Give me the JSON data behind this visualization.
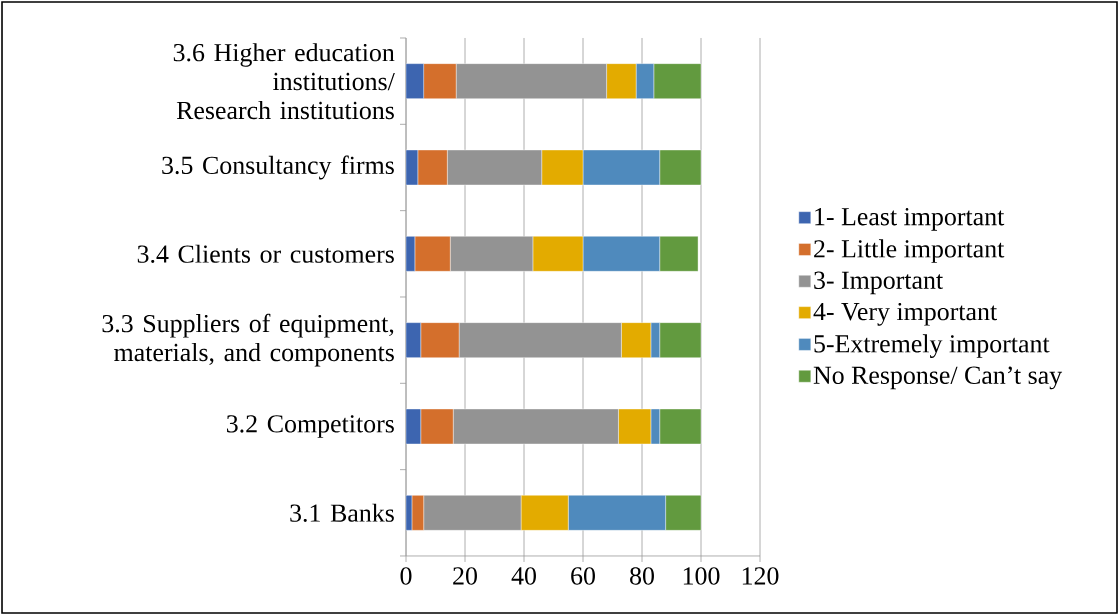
{
  "chart_data": {
    "type": "bar",
    "orientation": "horizontal",
    "stacked": true,
    "categories": [
      "3.6 Higher education institutions/ Research institutions",
      "3.5 Consultancy firms",
      "3.4 Clients or customers",
      "3.3 Suppliers of equipment, materials, and components",
      "3.2 Competitors",
      "3.1 Banks"
    ],
    "series": [
      {
        "name": "1- Least important",
        "color": "#3d65b0",
        "values": [
          6,
          4,
          3,
          5,
          5,
          2
        ]
      },
      {
        "name": "2- Little important",
        "color": "#d46f2c",
        "values": [
          11,
          10,
          12,
          13,
          11,
          4
        ]
      },
      {
        "name": "3- Important",
        "color": "#939393",
        "values": [
          51,
          32,
          28,
          55,
          56,
          33
        ]
      },
      {
        "name": "4- Very important",
        "color": "#e3ab00",
        "values": [
          10,
          14,
          17,
          10,
          11,
          16
        ]
      },
      {
        "name": "5-Extremely important",
        "color": "#4f8abd",
        "values": [
          6,
          26,
          26,
          3,
          3,
          33
        ]
      },
      {
        "name": "No Response/ Can’t say",
        "color": "#629a3f",
        "values": [
          16,
          14,
          13,
          14,
          14,
          12
        ]
      }
    ],
    "xlim": [
      0,
      120
    ],
    "xticks": [
      0,
      20,
      40,
      60,
      80,
      100,
      120
    ],
    "grid": "x",
    "legend": "right"
  }
}
